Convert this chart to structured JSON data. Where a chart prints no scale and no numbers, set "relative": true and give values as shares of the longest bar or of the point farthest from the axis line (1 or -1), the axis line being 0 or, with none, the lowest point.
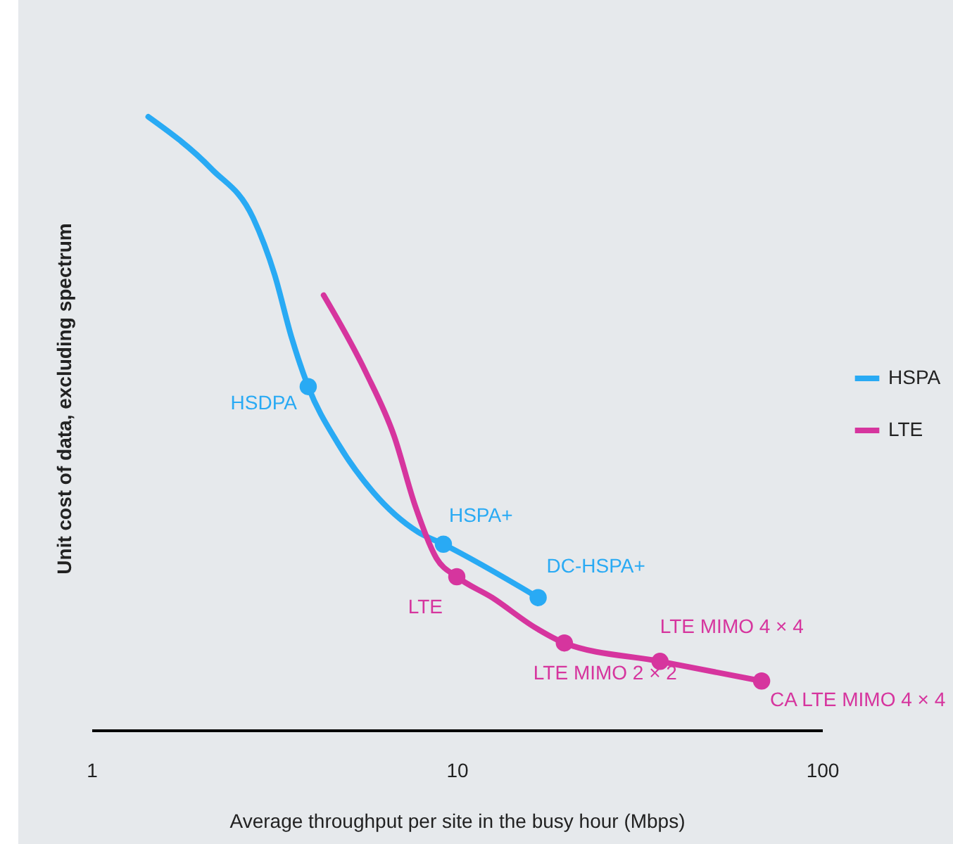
{
  "chart_data": {
    "type": "line",
    "xlabel": "Average throughput per site in the busy hour (Mbps)",
    "ylabel": "Unit cost of data, excluding spectrum",
    "relative": true,
    "log": "x",
    "xlim": [
      1,
      100
    ],
    "xticks": [
      1,
      10,
      100
    ],
    "grid": false,
    "legend": "right",
    "line_style": "solid",
    "series": [
      {
        "name": "HSPA",
        "color": "#29aaf4",
        "x": [
          1.43,
          2.13,
          2.77,
          3.17,
          3.53,
          3.92,
          4.72,
          5.9,
          7.83,
          9.19,
          16.7
        ],
        "values": [
          1.0,
          0.915,
          0.835,
          0.743,
          0.64,
          0.56,
          0.468,
          0.388,
          0.323,
          0.303,
          0.216
        ]
      },
      {
        "name": "LTE",
        "color": "#d6359e",
        "x": [
          4.32,
          5.64,
          6.74,
          7.7,
          8.8,
          10.0,
          12.5,
          16.4,
          19.7,
          36.0,
          68.3
        ],
        "values": [
          0.709,
          0.583,
          0.479,
          0.365,
          0.28,
          0.25,
          0.216,
          0.167,
          0.142,
          0.112,
          0.08
        ]
      },
      {
        "type": "scatter",
        "marker": "circle",
        "color": "#29aaf4",
        "x": [
          3.92,
          9.19,
          16.7
        ],
        "values": [
          0.56,
          0.303,
          0.216
        ]
      },
      {
        "type": "scatter",
        "marker": "circle",
        "color": "#d6359e",
        "x": [
          10.0,
          19.7,
          36.0,
          68.3
        ],
        "values": [
          0.25,
          0.142,
          0.112,
          0.08
        ]
      }
    ],
    "annotations": [
      {
        "text": "HSDPA",
        "x": 3.92,
        "y": 0.56
      },
      {
        "text": "HSPA+",
        "x": 9.19,
        "y": 0.303
      },
      {
        "text": "DC-HSPA+",
        "x": 16.7,
        "y": 0.216
      },
      {
        "text": "LTE",
        "x": 10.0,
        "y": 0.25
      },
      {
        "text": "LTE MIMO 2 × 2",
        "x": 19.7,
        "y": 0.142
      },
      {
        "text": "LTE MIMO 4 × 4",
        "x": 36.0,
        "y": 0.112
      },
      {
        "text": "CA LTE MIMO 4 × 4",
        "x": 68.3,
        "y": 0.08
      }
    ]
  }
}
